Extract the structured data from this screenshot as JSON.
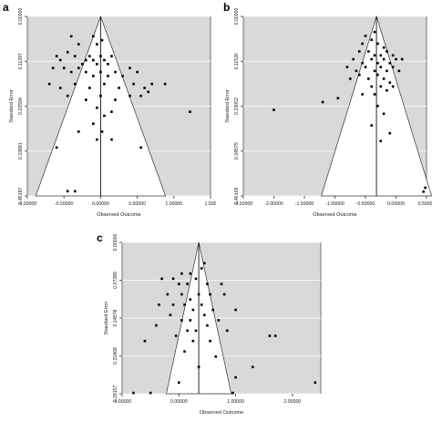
{
  "chart_data": [
    {
      "type": "scatter",
      "panel_label": "a",
      "xlabel": "Observed Outcome",
      "ylabel": "Standard Error",
      "xlim": [
        -1.0,
        1.5
      ],
      "ylim": [
        0.0,
        0.45187
      ],
      "y_inverted": true,
      "xticks": [
        -1.0,
        -0.5,
        0.0,
        0.5,
        1.0,
        1.5
      ],
      "xtick_labels": [
        "-1.00000",
        "-0.50000",
        "0.00000",
        "0.50000",
        "1.00000",
        "1.500"
      ],
      "yticks": [
        0.0,
        0.11297,
        0.22594,
        0.33891,
        0.45187
      ],
      "ytick_labels": [
        "0.00000",
        "0.11297",
        "0.22594",
        "0.33891",
        "0.45187"
      ],
      "funnel_center": 0.0,
      "background": "#d9d9d9",
      "grid": true,
      "points": [
        [
          -0.4,
          0.05
        ],
        [
          -0.3,
          0.07
        ],
        [
          -0.1,
          0.05
        ],
        [
          -0.05,
          0.07
        ],
        [
          0.02,
          0.06
        ],
        [
          -0.6,
          0.1
        ],
        [
          -0.55,
          0.11
        ],
        [
          -0.45,
          0.09
        ],
        [
          -0.35,
          0.1
        ],
        [
          -0.25,
          0.12
        ],
        [
          -0.2,
          0.11
        ],
        [
          -0.15,
          0.1
        ],
        [
          -0.1,
          0.11
        ],
        [
          -0.05,
          0.12
        ],
        [
          0.0,
          0.1
        ],
        [
          0.05,
          0.11
        ],
        [
          0.1,
          0.12
        ],
        [
          0.15,
          0.1
        ],
        [
          -0.65,
          0.13
        ],
        [
          -0.5,
          0.13
        ],
        [
          -0.4,
          0.14
        ],
        [
          -0.3,
          0.13
        ],
        [
          -0.2,
          0.14
        ],
        [
          -0.1,
          0.15
        ],
        [
          0.0,
          0.14
        ],
        [
          0.1,
          0.15
        ],
        [
          0.2,
          0.14
        ],
        [
          0.3,
          0.15
        ],
        [
          0.4,
          0.13
        ],
        [
          0.5,
          0.14
        ],
        [
          -0.7,
          0.17
        ],
        [
          -0.55,
          0.18
        ],
        [
          -0.35,
          0.17
        ],
        [
          -0.15,
          0.18
        ],
        [
          0.05,
          0.17
        ],
        [
          0.25,
          0.18
        ],
        [
          0.45,
          0.17
        ],
        [
          0.6,
          0.18
        ],
        [
          0.7,
          0.17
        ],
        [
          0.88,
          0.17
        ],
        [
          -0.45,
          0.2
        ],
        [
          -0.2,
          0.21
        ],
        [
          0.0,
          0.2
        ],
        [
          0.2,
          0.21
        ],
        [
          0.4,
          0.2
        ],
        [
          0.55,
          0.2
        ],
        [
          0.65,
          0.19
        ],
        [
          -0.05,
          0.23
        ],
        [
          0.15,
          0.24
        ],
        [
          1.22,
          0.24
        ],
        [
          0.05,
          0.25
        ],
        [
          -0.1,
          0.27
        ],
        [
          -0.3,
          0.29
        ],
        [
          0.15,
          0.31
        ],
        [
          -0.05,
          0.31
        ],
        [
          0.55,
          0.33
        ],
        [
          -0.6,
          0.33
        ],
        [
          -0.45,
          0.44
        ],
        [
          -0.35,
          0.44
        ],
        [
          0.02,
          0.29
        ]
      ]
    },
    {
      "type": "scatter",
      "panel_label": "b",
      "xlabel": "Observed Outcome",
      "ylabel": "Standard Error",
      "xlim": [
        -2.5,
        0.5
      ],
      "ylim": [
        0.0,
        0.46105
      ],
      "y_inverted": true,
      "xticks": [
        -2.5,
        -2.0,
        -1.5,
        -1.0,
        -0.5,
        0.0,
        0.5
      ],
      "xtick_labels": [
        "-2.50000",
        "-2.00000",
        "-1.50000",
        "-1.00000",
        "-0.50000",
        "0.00000",
        "0.50000"
      ],
      "yticks": [
        0.0,
        0.11526,
        0.23052,
        0.34579,
        0.46105
      ],
      "ytick_labels": [
        "0.00000",
        "0.11526",
        "0.23052",
        "0.34579",
        "0.46105"
      ],
      "funnel_center": -0.32,
      "background": "#d9d9d9",
      "grid": true,
      "points": [
        [
          -0.55,
          0.07
        ],
        [
          -0.4,
          0.06
        ],
        [
          -0.3,
          0.07
        ],
        [
          -0.2,
          0.08
        ],
        [
          -0.6,
          0.09
        ],
        [
          -0.45,
          0.09
        ],
        [
          -0.35,
          0.1
        ],
        [
          -0.25,
          0.1
        ],
        [
          -0.15,
          0.09
        ],
        [
          -0.05,
          0.1
        ],
        [
          -0.7,
          0.11
        ],
        [
          -0.55,
          0.12
        ],
        [
          -0.4,
          0.11
        ],
        [
          -0.3,
          0.12
        ],
        [
          -0.2,
          0.11
        ],
        [
          -0.1,
          0.12
        ],
        [
          0.0,
          0.11
        ],
        [
          0.1,
          0.11
        ],
        [
          -0.8,
          0.13
        ],
        [
          -0.65,
          0.14
        ],
        [
          -0.5,
          0.13
        ],
        [
          -0.35,
          0.14
        ],
        [
          -0.25,
          0.13
        ],
        [
          -0.15,
          0.14
        ],
        [
          -0.05,
          0.13
        ],
        [
          0.05,
          0.14
        ],
        [
          -0.75,
          0.16
        ],
        [
          -0.6,
          0.15
        ],
        [
          -0.45,
          0.16
        ],
        [
          -0.3,
          0.15
        ],
        [
          -0.2,
          0.16
        ],
        [
          -0.1,
          0.17
        ],
        [
          -0.4,
          0.18
        ],
        [
          -0.25,
          0.18
        ],
        [
          -0.15,
          0.19
        ],
        [
          -0.05,
          0.18
        ],
        [
          -0.55,
          0.2
        ],
        [
          -0.35,
          0.2
        ],
        [
          -0.95,
          0.21
        ],
        [
          -1.2,
          0.22
        ],
        [
          -2.0,
          0.24
        ],
        [
          -0.3,
          0.23
        ],
        [
          -0.2,
          0.25
        ],
        [
          -0.4,
          0.28
        ],
        [
          -0.1,
          0.3
        ],
        [
          -0.25,
          0.32
        ],
        [
          0.48,
          0.44
        ],
        [
          0.45,
          0.45
        ],
        [
          -0.5,
          0.05
        ],
        [
          -0.35,
          0.04
        ]
      ]
    },
    {
      "type": "scatter",
      "panel_label": "c",
      "xlabel": "Observed Outcome",
      "ylabel": "Standard Error",
      "xlim": [
        -1.0,
        2.5
      ],
      "ylim": [
        0.0,
        0.29157
      ],
      "y_inverted": true,
      "xticks": [
        -1.0,
        0.0,
        1.0,
        2.0
      ],
      "xtick_labels": [
        "-1.00000",
        "0.00000",
        "1.00000",
        "2.00000"
      ],
      "yticks": [
        0.0,
        0.07289,
        0.14578,
        0.21868,
        0.29157
      ],
      "ytick_labels": [
        "0.00000",
        "0.07289",
        "0.14578",
        "0.21868",
        "0.29157"
      ],
      "funnel_center": 0.35,
      "background": "#d9d9d9",
      "grid": true,
      "points": [
        [
          0.05,
          0.06
        ],
        [
          0.2,
          0.06
        ],
        [
          0.45,
          0.04
        ],
        [
          -0.3,
          0.07
        ],
        [
          -0.1,
          0.07
        ],
        [
          0.0,
          0.08
        ],
        [
          0.15,
          0.08
        ],
        [
          0.3,
          0.07
        ],
        [
          0.5,
          0.08
        ],
        [
          0.75,
          0.08
        ],
        [
          -0.2,
          0.1
        ],
        [
          0.05,
          0.1
        ],
        [
          0.2,
          0.11
        ],
        [
          0.35,
          0.1
        ],
        [
          0.55,
          0.1
        ],
        [
          0.8,
          0.1
        ],
        [
          -0.35,
          0.12
        ],
        [
          -0.1,
          0.12
        ],
        [
          0.1,
          0.12
        ],
        [
          0.25,
          0.13
        ],
        [
          0.4,
          0.12
        ],
        [
          0.6,
          0.13
        ],
        [
          1.0,
          0.13
        ],
        [
          -0.15,
          0.14
        ],
        [
          0.05,
          0.15
        ],
        [
          0.2,
          0.15
        ],
        [
          0.45,
          0.14
        ],
        [
          0.7,
          0.15
        ],
        [
          -0.4,
          0.16
        ],
        [
          0.15,
          0.17
        ],
        [
          0.3,
          0.17
        ],
        [
          0.5,
          0.16
        ],
        [
          0.85,
          0.17
        ],
        [
          -0.05,
          0.18
        ],
        [
          1.6,
          0.18
        ],
        [
          1.7,
          0.18
        ],
        [
          -0.6,
          0.19
        ],
        [
          0.25,
          0.19
        ],
        [
          0.55,
          0.19
        ],
        [
          0.1,
          0.21
        ],
        [
          0.65,
          0.22
        ],
        [
          0.35,
          0.24
        ],
        [
          1.3,
          0.24
        ],
        [
          0.0,
          0.27
        ],
        [
          1.0,
          0.26
        ],
        [
          2.4,
          0.27
        ],
        [
          -0.8,
          0.29
        ],
        [
          -0.5,
          0.29
        ],
        [
          0.95,
          0.29
        ],
        [
          0.4,
          0.05
        ]
      ]
    }
  ]
}
